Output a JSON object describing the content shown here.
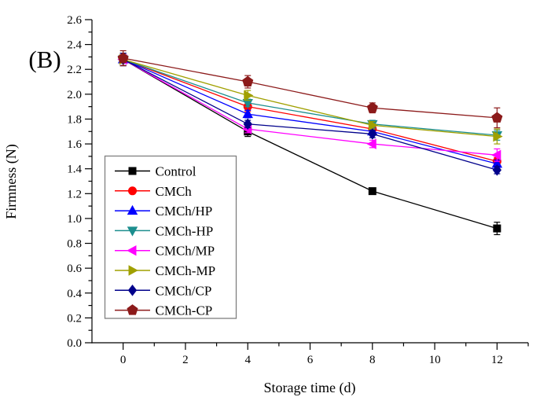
{
  "figure": {
    "panel_label": "(B)"
  },
  "chart_data": {
    "type": "line",
    "title": "",
    "xlabel": "Storage time (d)",
    "ylabel": "Firmness (N)",
    "xlim": [
      -1,
      13
    ],
    "ylim": [
      0,
      2.6
    ],
    "xticks": [
      0,
      2,
      4,
      6,
      8,
      10,
      12
    ],
    "xminor": [
      1,
      3,
      5,
      7,
      9,
      11,
      13
    ],
    "ytick_step": 0.2,
    "yminor_step": 0.1,
    "grid": false,
    "legend_position": "inside-left-middle",
    "legend_border_color": "#808080",
    "x": [
      0,
      4,
      8,
      12
    ],
    "series": [
      {
        "name": "Control",
        "marker": "square",
        "color": "#000000",
        "values": [
          2.28,
          1.7,
          1.22,
          0.92
        ],
        "errors": [
          0.05,
          0.04,
          0.02,
          0.05
        ]
      },
      {
        "name": "CMCh",
        "marker": "circle",
        "color": "#FF0000",
        "values": [
          2.28,
          1.9,
          1.72,
          1.46
        ],
        "errors": [
          0.05,
          0.04,
          0.03,
          0.03
        ]
      },
      {
        "name": "CMCh/HP",
        "marker": "triangle-up",
        "color": "#0000FF",
        "values": [
          2.28,
          1.84,
          1.7,
          1.44
        ],
        "errors": [
          0.05,
          0.03,
          0.03,
          0.03
        ]
      },
      {
        "name": "CMCh-HP",
        "marker": "triangle-down",
        "color": "#1C8E8E",
        "values": [
          2.28,
          1.93,
          1.76,
          1.67
        ],
        "errors": [
          0.05,
          0.03,
          0.03,
          0.04
        ]
      },
      {
        "name": "CMCh/MP",
        "marker": "triangle-left",
        "color": "#FF00FF",
        "values": [
          2.28,
          1.72,
          1.6,
          1.51
        ],
        "errors": [
          0.05,
          0.03,
          0.03,
          0.05
        ]
      },
      {
        "name": "CMCh-MP",
        "marker": "triangle-right",
        "color": "#A0A000",
        "values": [
          2.28,
          1.99,
          1.75,
          1.66
        ],
        "errors": [
          0.05,
          0.04,
          0.03,
          0.06
        ]
      },
      {
        "name": "CMCh/CP",
        "marker": "diamond",
        "color": "#00008B",
        "values": [
          2.28,
          1.76,
          1.68,
          1.39
        ],
        "errors": [
          0.05,
          0.03,
          0.03,
          0.03
        ]
      },
      {
        "name": "CMCh-CP",
        "marker": "pentagon",
        "color": "#8C1A1A",
        "values": [
          2.29,
          2.1,
          1.89,
          1.81
        ],
        "errors": [
          0.06,
          0.05,
          0.04,
          0.08
        ]
      }
    ]
  }
}
